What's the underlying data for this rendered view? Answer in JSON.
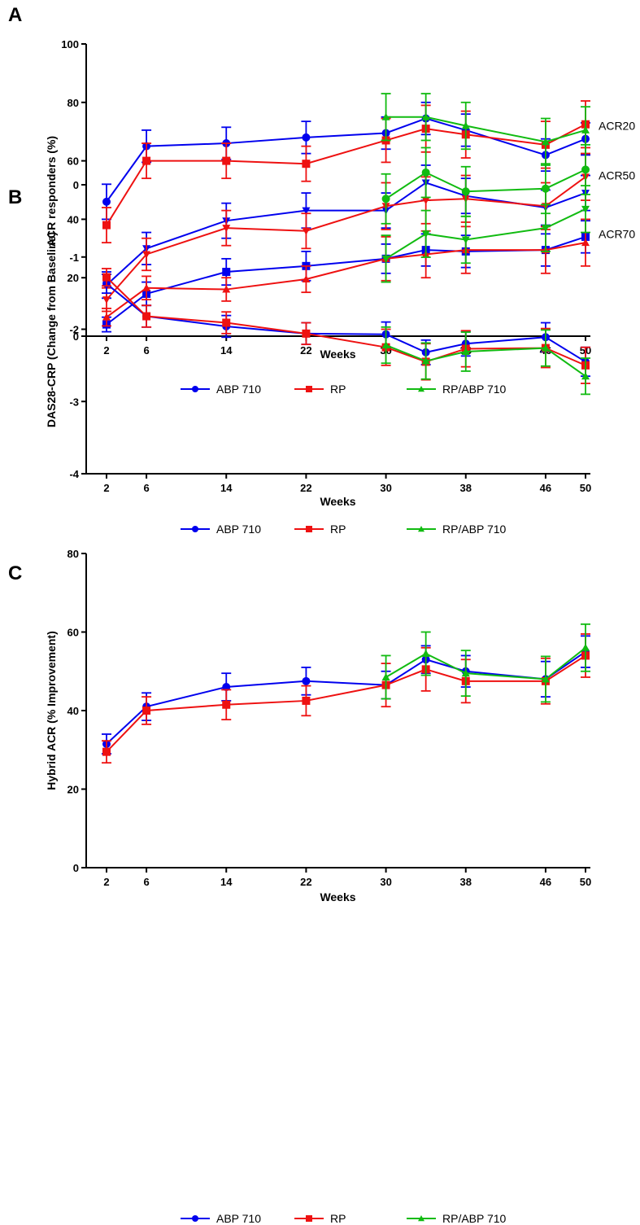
{
  "colors": {
    "ABP 710": "#0000ee",
    "RP": "#ee1111",
    "RP/ABP 710": "#11bb11"
  },
  "chart_data": [
    {
      "panel": "A",
      "type": "line",
      "xlabel": "Weeks",
      "ylabel": "ACR responders  (%)",
      "ylim": [
        0,
        100
      ],
      "yticks": [
        0,
        20,
        40,
        60,
        80,
        100
      ],
      "xticks": [
        2,
        6,
        14,
        22,
        30,
        38,
        46,
        50
      ],
      "legend": [
        "ABP 710",
        "RP",
        "RP/ABP 710"
      ],
      "legend_position": "bottom",
      "annotations": [
        {
          "text": "ACR20",
          "y": 72
        },
        {
          "text": "ACR50",
          "y": 55
        },
        {
          "text": "ACR70",
          "y": 35
        }
      ],
      "series": [
        {
          "name": "ABP 710",
          "group": "ACR20",
          "marker": "circle",
          "x": [
            2,
            6,
            14,
            22,
            30,
            34,
            38,
            46,
            50
          ],
          "values": [
            46,
            65,
            66,
            68,
            69.5,
            74.5,
            70.5,
            62,
            67.5
          ],
          "err": [
            6,
            5.5,
            5.5,
            5.5,
            5.5,
            5.5,
            5.5,
            5.5,
            5.5
          ]
        },
        {
          "name": "RP",
          "group": "ACR20",
          "marker": "square",
          "x": [
            2,
            6,
            14,
            22,
            30,
            34,
            38,
            46,
            50
          ],
          "values": [
            38,
            60,
            60,
            59,
            67,
            71,
            69,
            65.5,
            72.5
          ],
          "err": [
            6,
            6,
            6,
            6,
            7.5,
            8,
            8,
            8,
            8
          ]
        },
        {
          "name": "RP/ABP 710",
          "group": "ACR20",
          "marker": "triangle",
          "x": [
            30,
            34,
            38,
            46,
            50
          ],
          "values": [
            75,
            75,
            72,
            66.5,
            70.5
          ],
          "err": [
            8,
            8,
            8,
            8,
            8
          ]
        },
        {
          "name": "ABP 710",
          "group": "ACR50",
          "marker": "triangle-down",
          "x": [
            2,
            6,
            14,
            22,
            30,
            34,
            38,
            46,
            50
          ],
          "values": [
            17.5,
            30,
            39.5,
            43,
            43,
            52.5,
            48,
            44,
            49
          ],
          "err": [
            4.5,
            5.5,
            6,
            6,
            6,
            6,
            6,
            6,
            6
          ]
        },
        {
          "name": "RP",
          "group": "ACR50",
          "marker": "triangle-down",
          "x": [
            2,
            6,
            14,
            22,
            30,
            34,
            38,
            46,
            50
          ],
          "values": [
            12.5,
            28,
            37,
            36,
            44.5,
            46.5,
            47,
            44.5,
            54.5
          ],
          "err": [
            4,
            5.5,
            6,
            6,
            8,
            8,
            8,
            8,
            8
          ]
        },
        {
          "name": "RP/ABP 710",
          "group": "ACR50",
          "marker": "circle",
          "x": [
            30,
            34,
            38,
            46,
            50
          ],
          "values": [
            47,
            56,
            49.5,
            50.5,
            57
          ],
          "err": [
            8.5,
            8.5,
            8.5,
            8.5,
            8.5
          ]
        },
        {
          "name": "ABP 710",
          "group": "ACR70",
          "marker": "square",
          "x": [
            2,
            6,
            14,
            22,
            30,
            34,
            38,
            46,
            50
          ],
          "values": [
            4,
            14.5,
            22,
            24,
            26.5,
            29.5,
            29,
            29.5,
            34
          ],
          "err": [
            2.5,
            4,
            4.5,
            5,
            5,
            5.5,
            5.5,
            5.5,
            5.5
          ]
        },
        {
          "name": "RP",
          "group": "ACR70",
          "marker": "triangle",
          "x": [
            2,
            6,
            14,
            22,
            30,
            34,
            38,
            46,
            50
          ],
          "values": [
            6.5,
            16.5,
            16,
            19.5,
            26.5,
            28,
            29.5,
            29.5,
            32
          ],
          "err": [
            3,
            4,
            4,
            4.5,
            7.5,
            8,
            8,
            8,
            8
          ]
        },
        {
          "name": "RP/ABP 710",
          "group": "ACR70",
          "marker": "triangle-down",
          "x": [
            30,
            34,
            38,
            46,
            50
          ],
          "values": [
            26.5,
            35,
            33,
            37,
            43.5
          ],
          "err": [
            8,
            8,
            8,
            8,
            8
          ]
        }
      ]
    },
    {
      "panel": "B",
      "type": "line",
      "xlabel": "Weeks",
      "ylabel": "DAS28-CRP (Change from  Baseline)",
      "ylim": [
        -4,
        0
      ],
      "yticks": [
        -4,
        -3,
        -2,
        -1,
        0
      ],
      "xticks": [
        2,
        6,
        14,
        22,
        30,
        38,
        46,
        50
      ],
      "legend": [
        "ABP 710",
        "RP",
        "RP/ABP 710"
      ],
      "legend_position": "bottom",
      "series": [
        {
          "name": "ABP 710",
          "marker": "circle",
          "x": [
            2,
            6,
            14,
            22,
            30,
            34,
            38,
            46,
            50
          ],
          "values": [
            -1.37,
            -1.82,
            -1.96,
            -2.06,
            -2.07,
            -2.32,
            -2.2,
            -2.11,
            -2.45
          ],
          "err": [
            0.13,
            0.15,
            0.15,
            0.15,
            0.17,
            0.17,
            0.17,
            0.2,
            0.2
          ]
        },
        {
          "name": "RP",
          "marker": "square",
          "x": [
            2,
            6,
            14,
            22,
            30,
            34,
            38,
            46,
            50
          ],
          "values": [
            -1.28,
            -1.82,
            -1.91,
            -2.06,
            -2.25,
            -2.45,
            -2.27,
            -2.26,
            -2.5
          ],
          "err": [
            0.12,
            0.15,
            0.15,
            0.15,
            0.25,
            0.25,
            0.25,
            0.27,
            0.25
          ]
        },
        {
          "name": "RP/ABP 710",
          "marker": "triangle",
          "x": [
            30,
            34,
            38,
            46,
            50
          ],
          "values": [
            -2.22,
            -2.44,
            -2.31,
            -2.26,
            -2.65
          ],
          "err": [
            0.25,
            0.25,
            0.27,
            0.25,
            0.25
          ]
        }
      ]
    },
    {
      "panel": "C",
      "type": "line",
      "xlabel": "Weeks",
      "ylabel": "Hybrid ACR (% Improvement)",
      "ylim": [
        0,
        80
      ],
      "yticks": [
        0,
        20,
        40,
        60,
        80
      ],
      "xticks": [
        2,
        6,
        14,
        22,
        30,
        38,
        46,
        50
      ],
      "legend": [
        "ABP 710",
        "RP",
        "RP/ABP 710"
      ],
      "legend_position": "bottom",
      "series": [
        {
          "name": "ABP 710",
          "marker": "circle",
          "x": [
            2,
            6,
            14,
            22,
            30,
            34,
            38,
            46,
            50
          ],
          "values": [
            31.5,
            41,
            46,
            47.5,
            46.5,
            53,
            50,
            48,
            55
          ],
          "err": [
            2.5,
            3.5,
            3.5,
            3.5,
            3.5,
            3.5,
            4,
            4.5,
            4
          ]
        },
        {
          "name": "RP",
          "marker": "square",
          "x": [
            2,
            6,
            14,
            22,
            30,
            34,
            38,
            46,
            50
          ],
          "values": [
            29.5,
            40,
            41.5,
            42.5,
            46.5,
            50.5,
            47.5,
            47.5,
            54
          ],
          "err": [
            2.8,
            3.5,
            3.8,
            3.8,
            5.5,
            5.5,
            5.5,
            5.8,
            5.5
          ]
        },
        {
          "name": "RP/ABP 710",
          "marker": "triangle",
          "x": [
            30,
            34,
            38,
            46,
            50
          ],
          "values": [
            48.5,
            54.5,
            49.5,
            48,
            56
          ],
          "err": [
            5.5,
            5.5,
            5.8,
            5.8,
            6
          ]
        }
      ]
    }
  ]
}
